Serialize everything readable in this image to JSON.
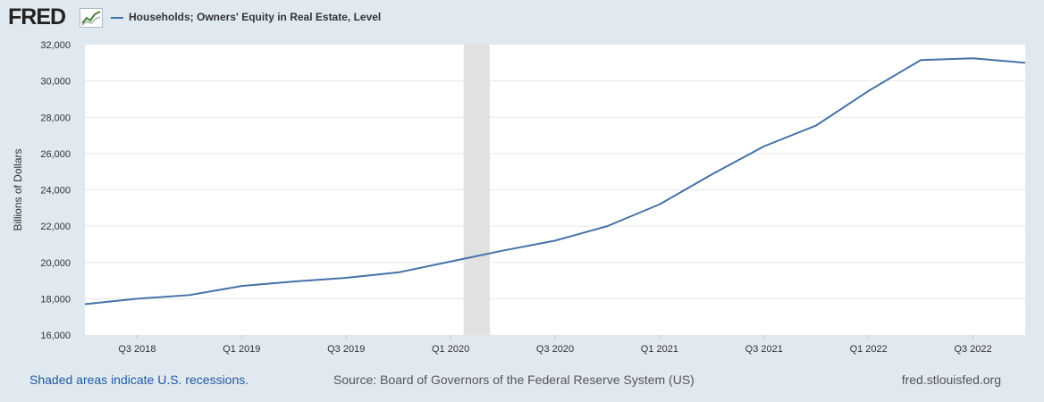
{
  "header": {
    "logo_text": "FRED",
    "legend_label": "Households; Owners' Equity in Real Estate, Level",
    "series_color": "#4572a7"
  },
  "footer": {
    "recession_note": "Shaded areas indicate U.S. recessions.",
    "source": "Source: Board of Governors of the Federal Reserve System (US)",
    "credit": "fred.stlouisfed.org"
  },
  "chart_data": {
    "type": "line",
    "title": "",
    "xlabel": "",
    "ylabel": "Billions of Dollars",
    "ylim": [
      16000,
      32000
    ],
    "y_ticks": [
      "16,000",
      "18,000",
      "20,000",
      "22,000",
      "24,000",
      "26,000",
      "28,000",
      "30,000",
      "32,000"
    ],
    "x_tick_labels": [
      "Q3 2018",
      "Q1 2019",
      "Q3 2019",
      "Q1 2020",
      "Q3 2020",
      "Q1 2021",
      "Q3 2021",
      "Q1 2022",
      "Q3 2022"
    ],
    "grid": true,
    "recession_shading": [
      "Q1 2020",
      "Q2 2020"
    ],
    "series": [
      {
        "name": "Households; Owners' Equity in Real Estate, Level",
        "x": [
          "Q2 2018",
          "Q3 2018",
          "Q4 2018",
          "Q1 2019",
          "Q2 2019",
          "Q3 2019",
          "Q4 2019",
          "Q1 2020",
          "Q2 2020",
          "Q3 2020",
          "Q4 2020",
          "Q1 2021",
          "Q2 2021",
          "Q3 2021",
          "Q4 2021",
          "Q1 2022",
          "Q2 2022",
          "Q3 2022",
          "Q4 2022"
        ],
        "values": [
          17700,
          18000,
          18200,
          18700,
          18950,
          19150,
          19450,
          20050,
          20650,
          21200,
          22000,
          23200,
          24850,
          26400,
          27550,
          29450,
          31150,
          31250,
          31000
        ]
      }
    ]
  }
}
